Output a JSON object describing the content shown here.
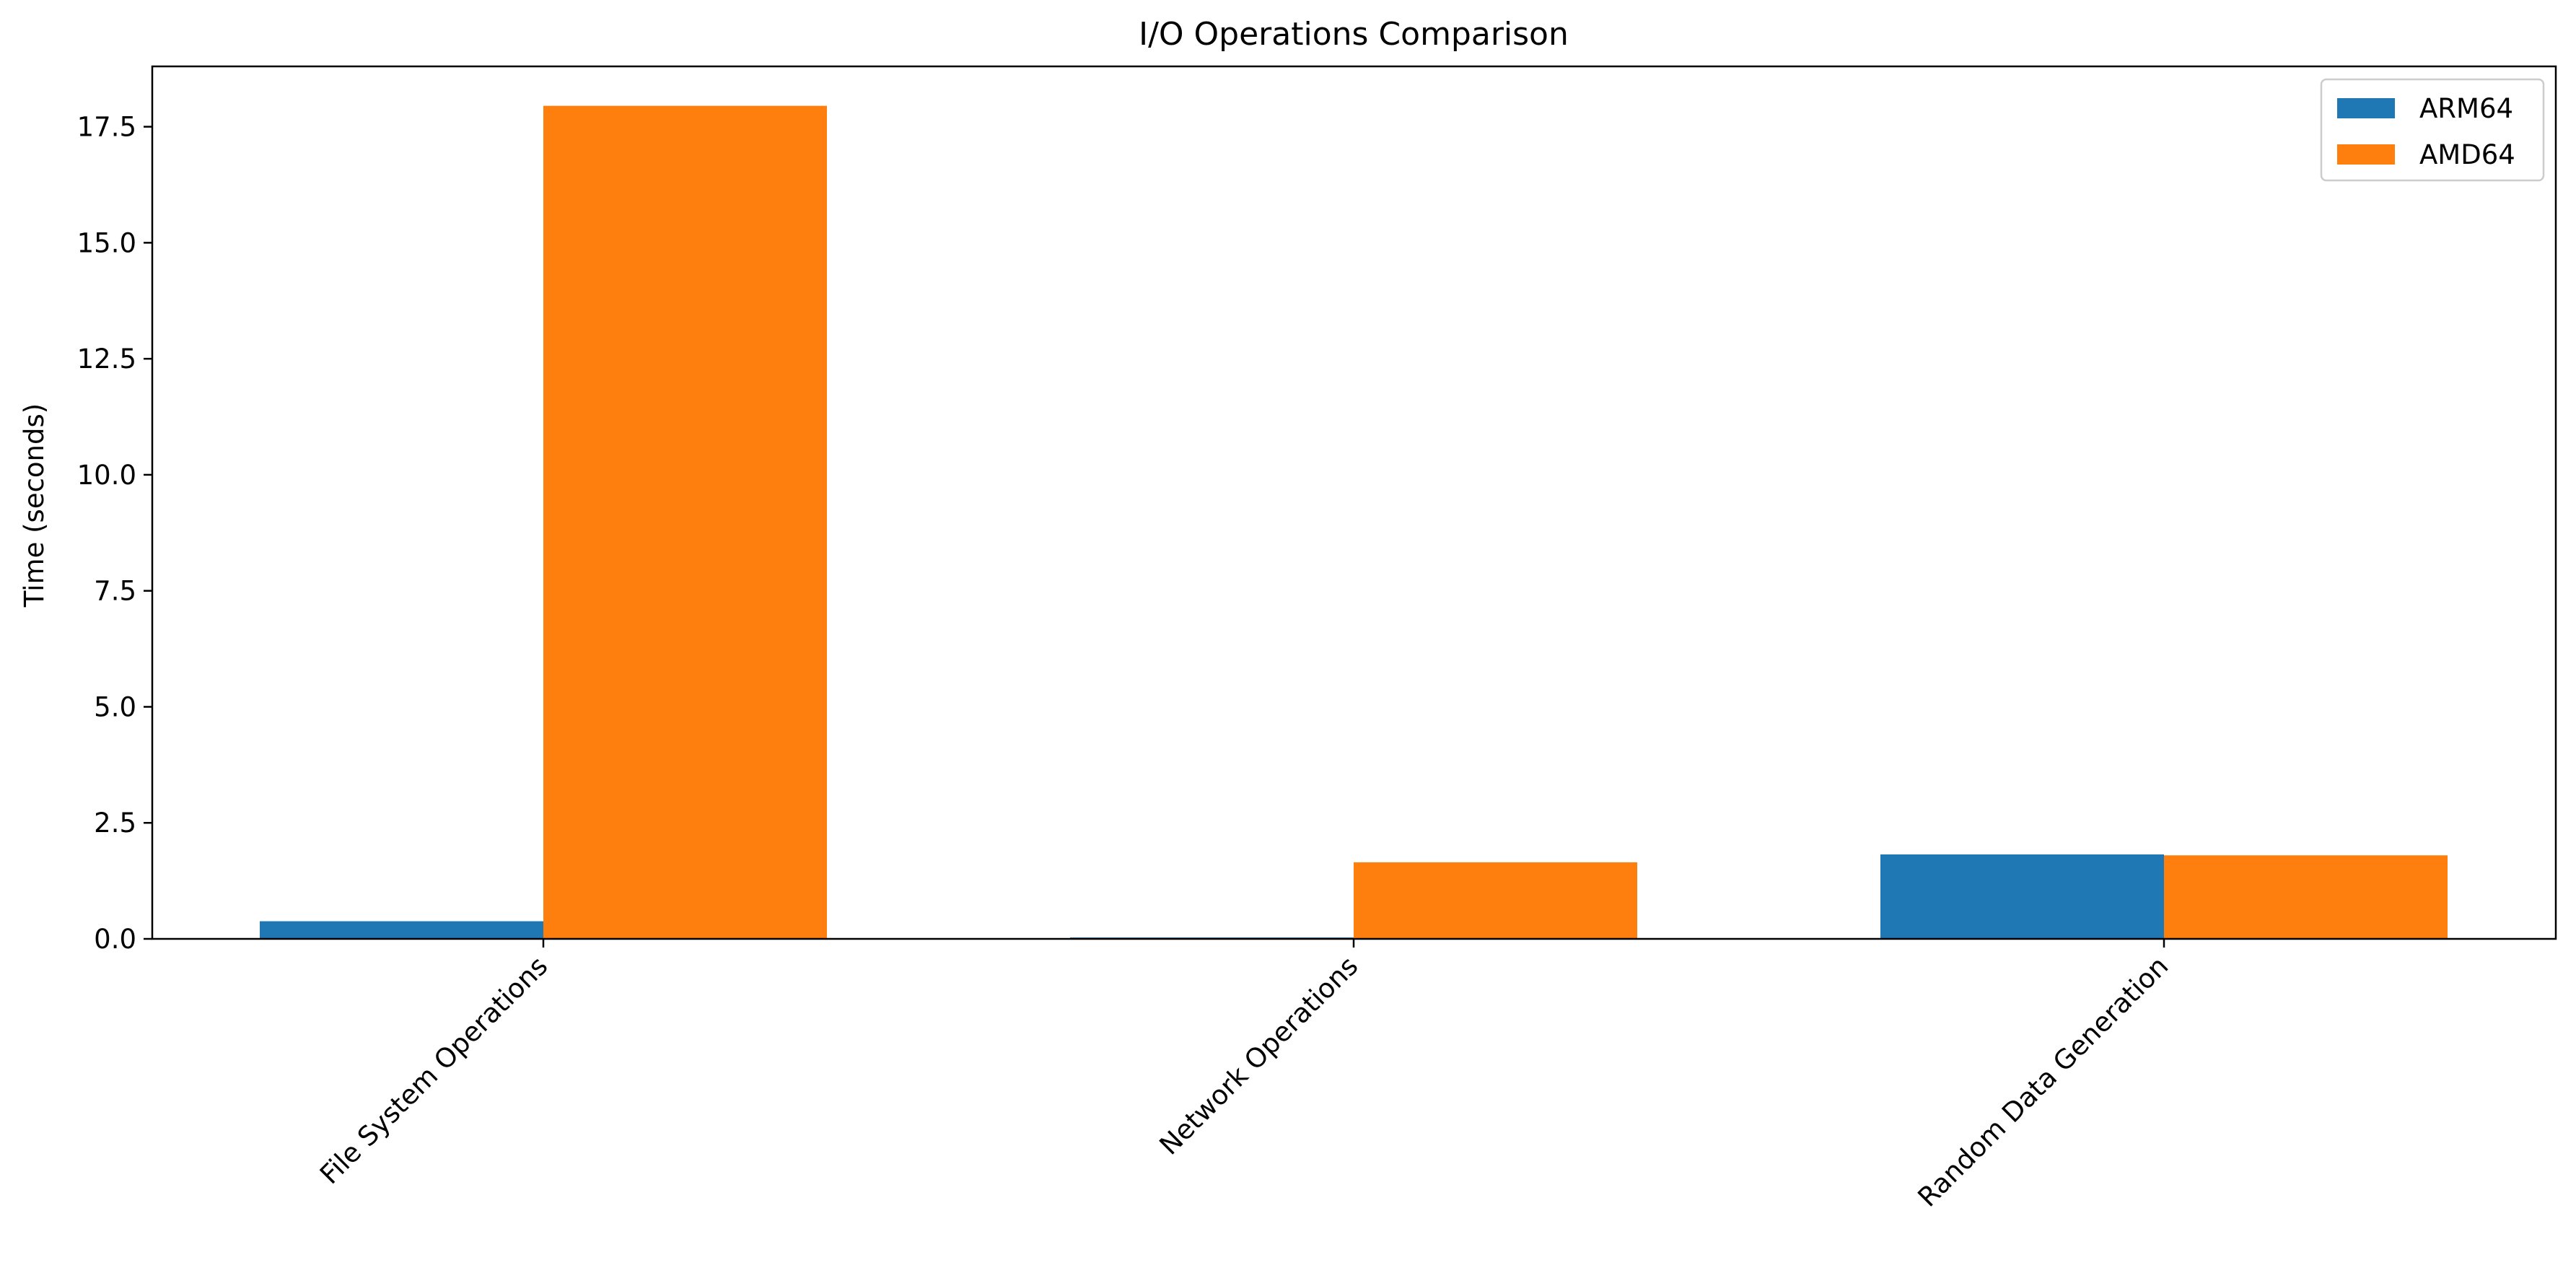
{
  "chart_data": {
    "type": "bar",
    "title": "I/O Operations Comparison",
    "xlabel": "",
    "ylabel": "Time (seconds)",
    "categories": [
      "File System Operations",
      "Network Operations",
      "Random Data Generation"
    ],
    "series": [
      {
        "name": "ARM64",
        "color": "#1f77b4",
        "values": [
          0.38,
          0.03,
          1.82
        ]
      },
      {
        "name": "AMD64",
        "color": "#ff7f0e",
        "values": [
          17.95,
          1.65,
          1.8
        ]
      }
    ],
    "ylim": [
      0,
      18.8
    ],
    "yticks": [
      "0.0",
      "2.5",
      "5.0",
      "7.5",
      "10.0",
      "12.5",
      "15.0",
      "17.5"
    ],
    "ytick_values": [
      0,
      2.5,
      5.0,
      7.5,
      10.0,
      12.5,
      15.0,
      17.5
    ],
    "legend": "top-right",
    "grid": false
  }
}
